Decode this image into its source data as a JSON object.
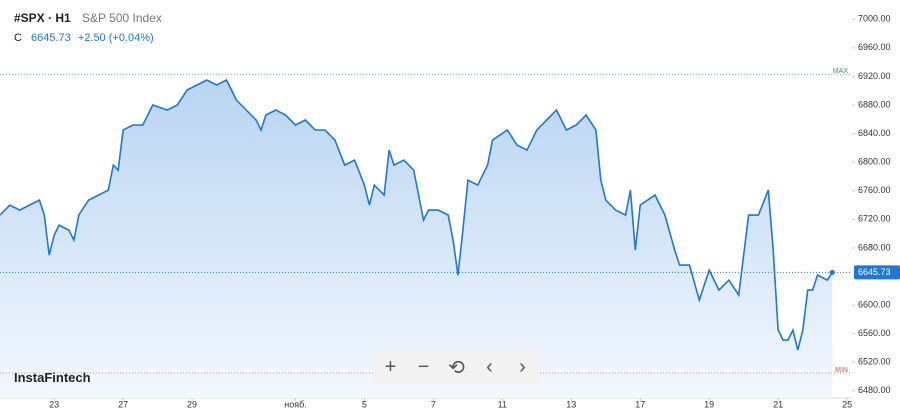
{
  "header": {
    "symbol": "#SPX · H1",
    "name": "S&P 500 Index",
    "close_label": "C",
    "close": "6645.73",
    "change": "+2.50 (+0.04%)"
  },
  "logo": "InstaFintech",
  "chart_data": {
    "type": "area",
    "color": "#1f78d1",
    "x": [
      0,
      2,
      4,
      6,
      8,
      9,
      10,
      11,
      12,
      14,
      15,
      16,
      18,
      20,
      22,
      23,
      24,
      25,
      27,
      29,
      31,
      34,
      36,
      38,
      40,
      42,
      44,
      46,
      48,
      50,
      52,
      53,
      54,
      56,
      58,
      60,
      62,
      64,
      66,
      68,
      70,
      72,
      74,
      75,
      76,
      78,
      79,
      80,
      82,
      84,
      86,
      87,
      89,
      91,
      92,
      93,
      94,
      95,
      97,
      99,
      100,
      103,
      105,
      107,
      109,
      111,
      113,
      115,
      117,
      119,
      121,
      122,
      123,
      125,
      127,
      128,
      129,
      130,
      133,
      135,
      137,
      138,
      140,
      142,
      144,
      146,
      148,
      150,
      152,
      154,
      156,
      157,
      158,
      159,
      160,
      161,
      162,
      163,
      164,
      165,
      166,
      168,
      169
    ],
    "values": [
      6726,
      6740,
      6733,
      6740,
      6747,
      6726,
      6670,
      6698,
      6712,
      6705,
      6691,
      6726,
      6747,
      6754,
      6761,
      6796,
      6789,
      6845,
      6852,
      6852,
      6880,
      6873,
      6880,
      6901,
      6908,
      6915,
      6908,
      6915,
      6887,
      6873,
      6859,
      6845,
      6866,
      6873,
      6866,
      6852,
      6859,
      6845,
      6845,
      6831,
      6796,
      6803,
      6768,
      6740,
      6768,
      6754,
      6817,
      6796,
      6803,
      6789,
      6719,
      6733,
      6733,
      6726,
      6691,
      6642,
      6705,
      6775,
      6768,
      6796,
      6831,
      6845,
      6824,
      6817,
      6845,
      6859,
      6873,
      6845,
      6852,
      6866,
      6845,
      6775,
      6747,
      6733,
      6726,
      6761,
      6677,
      6740,
      6754,
      6726,
      6677,
      6656,
      6656,
      6607,
      6649,
      6621,
      6635,
      6614,
      6726,
      6726,
      6761,
      6677,
      6565,
      6551,
      6551,
      6565,
      6537,
      6565,
      6621,
      6621,
      6642,
      6635,
      6645.73
    ],
    "xlim": [
      0,
      173
    ],
    "xticks": [
      {
        "value": 11,
        "label": "23"
      },
      {
        "value": 25,
        "label": "27"
      },
      {
        "value": 39,
        "label": "29"
      },
      {
        "value": 60,
        "label": "нояб."
      },
      {
        "value": 74,
        "label": "5"
      },
      {
        "value": 88,
        "label": "7"
      },
      {
        "value": 102,
        "label": "11"
      },
      {
        "value": 116,
        "label": "13"
      },
      {
        "value": 130,
        "label": "17"
      },
      {
        "value": 144,
        "label": "19"
      },
      {
        "value": 158,
        "label": "21"
      },
      {
        "value": 172,
        "label": "25"
      }
    ],
    "ylim": [
      6470,
      7027
    ],
    "yticks": [
      {
        "value": 7000,
        "label": "7000.00"
      },
      {
        "value": 6960,
        "label": "6960.00"
      },
      {
        "value": 6920,
        "label": "6920.00"
      },
      {
        "value": 6880,
        "label": "6880.00"
      },
      {
        "value": 6840,
        "label": "6840.00"
      },
      {
        "value": 6800,
        "label": "6800.00"
      },
      {
        "value": 6760,
        "label": "6760.00"
      },
      {
        "value": 6720,
        "label": "6720.00"
      },
      {
        "value": 6680,
        "label": "6680.00"
      },
      {
        "value": 6600,
        "label": "6600.00"
      },
      {
        "value": 6560,
        "label": "6560.00"
      },
      {
        "value": 6520,
        "label": "6520.00"
      },
      {
        "value": 6480,
        "label": "6480.00"
      }
    ],
    "max_line": {
      "label": "MAX",
      "value": 6923
    },
    "min_line": {
      "label": "MIN",
      "value": 6505
    }
  }
}
